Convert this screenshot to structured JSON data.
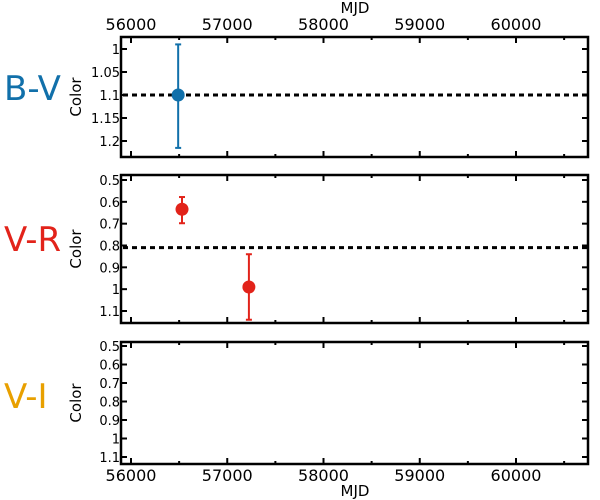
{
  "figure": {
    "x_axis_label_top": "MJD",
    "x_axis_label_bottom": "MJD",
    "y_axis_label": "Color"
  },
  "chart_data": [
    {
      "type": "scatter",
      "panel": "B-V",
      "label": "B-V",
      "color": "#1170aa",
      "xlabel": "MJD",
      "ylabel": "Color",
      "xlim": [
        55700,
        60760
      ],
      "ylim": [
        1.225,
        0.975
      ],
      "y_inverted": true,
      "x_ticks": [
        56000,
        57000,
        58000,
        59000,
        60000
      ],
      "x_tick_labels_top": [
        "56000",
        "57000",
        "58000",
        "59000",
        "60000"
      ],
      "y_ticks": [
        1,
        1.05,
        1.1,
        1.15,
        1.2
      ],
      "y_tick_labels": [
        "1",
        "1.05",
        "1.1",
        "1.15",
        "1.2"
      ],
      "reference_line": 1.1,
      "points": [
        {
          "x": 56490,
          "y": 1.1,
          "yerr_low": 0.99,
          "yerr_high": 1.215
        }
      ]
    },
    {
      "type": "scatter",
      "panel": "V-R",
      "label": "V-R",
      "color": "#e2231a",
      "xlabel": "MJD",
      "ylabel": "Color",
      "xlim": [
        55700,
        60760
      ],
      "ylim": [
        1.15,
        0.49
      ],
      "y_inverted": true,
      "x_ticks": [
        56000,
        57000,
        58000,
        59000,
        60000
      ],
      "y_ticks": [
        0.5,
        0.6,
        0.7,
        0.8,
        0.9,
        1,
        1.1
      ],
      "y_tick_labels": [
        "0.5",
        "0.6",
        "0.7",
        "0.8",
        "0.9",
        "1",
        "1.1"
      ],
      "reference_line": 0.81,
      "points": [
        {
          "x": 56530,
          "y": 0.634,
          "yerr_low": 0.578,
          "yerr_high": 0.698
        },
        {
          "x": 57225,
          "y": 0.99,
          "yerr_low": 0.84,
          "yerr_high": 1.14
        }
      ]
    },
    {
      "type": "scatter",
      "panel": "V-I",
      "label": "V-I",
      "color": "#e8a000",
      "xlabel": "MJD",
      "ylabel": "Color",
      "xlim": [
        55700,
        60760
      ],
      "ylim": [
        1.15,
        0.49
      ],
      "y_inverted": true,
      "x_ticks": [
        56000,
        57000,
        58000,
        59000,
        60000
      ],
      "x_tick_labels_bottom": [
        "56000",
        "57000",
        "58000",
        "59000",
        "60000"
      ],
      "y_ticks": [
        0.5,
        0.6,
        0.7,
        0.8,
        0.9,
        1,
        1.1
      ],
      "y_tick_labels": [
        "0.5",
        "0.6",
        "0.7",
        "0.8",
        "0.9",
        "1",
        "1.1"
      ],
      "reference_line": null,
      "points": []
    }
  ]
}
